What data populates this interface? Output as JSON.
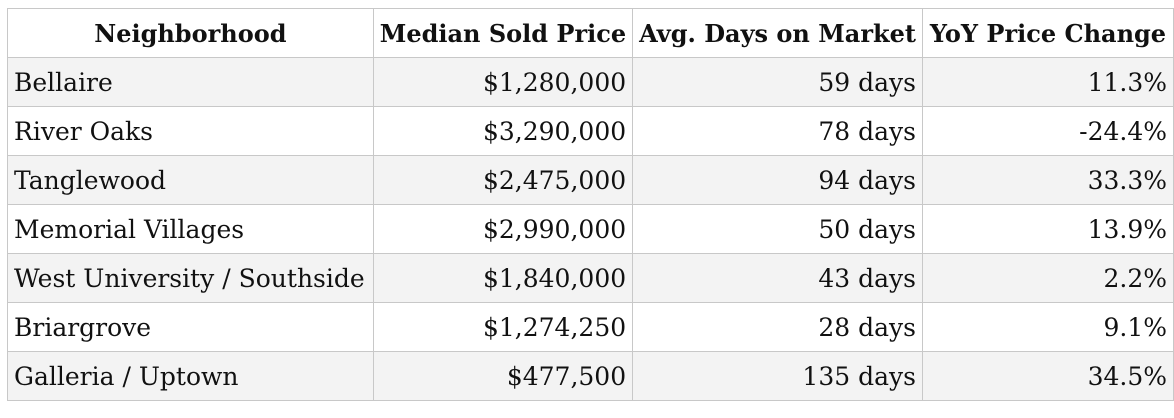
{
  "table": {
    "headers": [
      "Neighborhood",
      "Median Sold Price",
      "Avg. Days on Market",
      "YoY Price Change"
    ],
    "rows": [
      {
        "neighborhood": "Bellaire",
        "median_price": "$1,280,000",
        "avg_days": "59 days",
        "yoy_change": "11.3%"
      },
      {
        "neighborhood": "River Oaks",
        "median_price": "$3,290,000",
        "avg_days": "78 days",
        "yoy_change": "-24.4%"
      },
      {
        "neighborhood": "Tanglewood",
        "median_price": "$2,475,000",
        "avg_days": "94 days",
        "yoy_change": "33.3%"
      },
      {
        "neighborhood": "Memorial Villages",
        "median_price": "$2,990,000",
        "avg_days": "50 days",
        "yoy_change": "13.9%"
      },
      {
        "neighborhood": "West University / Southside",
        "median_price": "$1,840,000",
        "avg_days": "43 days",
        "yoy_change": "2.2%"
      },
      {
        "neighborhood": "Briargrove",
        "median_price": "$1,274,250",
        "avg_days": "28 days",
        "yoy_change": "9.1%"
      },
      {
        "neighborhood": "Galleria / Uptown",
        "median_price": "$477,500",
        "avg_days": "135 days",
        "yoy_change": "34.5%"
      }
    ]
  }
}
